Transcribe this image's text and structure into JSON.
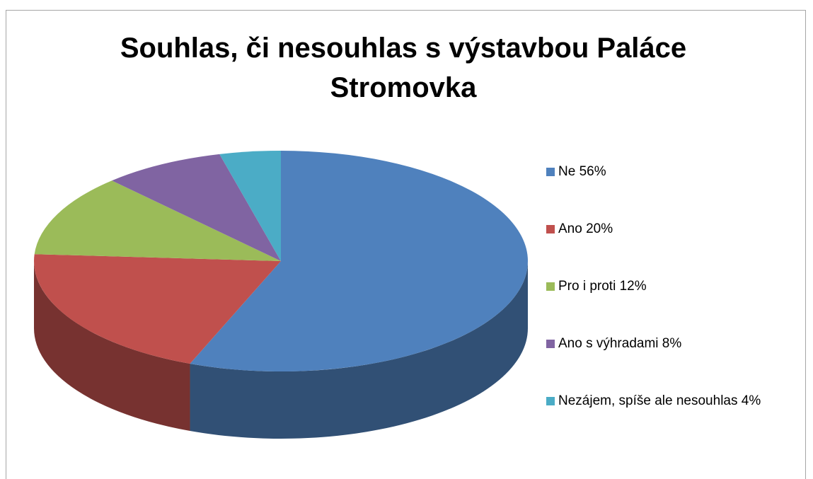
{
  "chart_data": {
    "type": "pie3d",
    "title": "Souhlas, či nesouhlas s výstavbou Paláce Stromovka",
    "categories": [
      "Ne 56%",
      "Ano 20%",
      "Pro i proti 12%",
      "Ano s výhradami 8%",
      "Nezájem, spíše ale nesouhlas 4%"
    ],
    "values": [
      56,
      20,
      12,
      8,
      4
    ],
    "colors": [
      "#4f81bd",
      "#c0504d",
      "#9bbb59",
      "#8064a2",
      "#4bacc6"
    ],
    "legend": "right"
  }
}
